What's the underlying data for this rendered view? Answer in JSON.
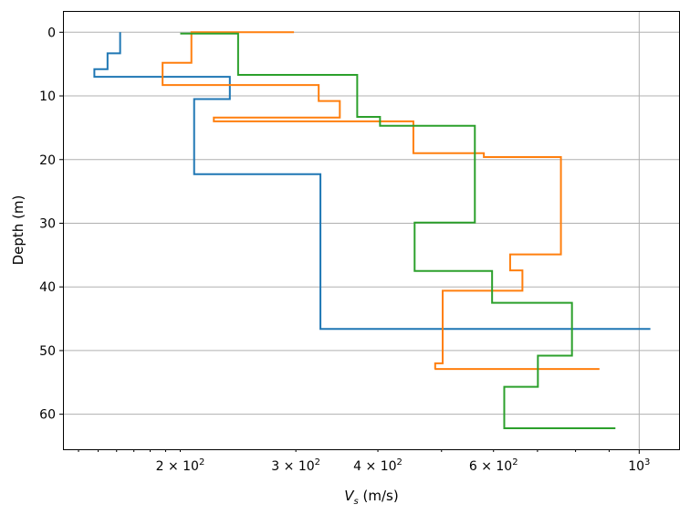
{
  "chart_data": {
    "type": "line",
    "xscale": "log",
    "xlabel_main": "V",
    "xlabel_sub": "s",
    "xlabel_unit": "(m/s)",
    "ylabel": "Depth (m)",
    "xlim": [
      133,
      1150
    ],
    "ylim": [
      65.5,
      -3.2
    ],
    "y_inverted": true,
    "grid": true,
    "x_ticks": [
      {
        "value": 200,
        "base": "2",
        "rest": " × 10",
        "exp": "2"
      },
      {
        "value": 300,
        "base": "3",
        "rest": " × 10",
        "exp": "2"
      },
      {
        "value": 400,
        "base": "4",
        "rest": " × 10",
        "exp": "2"
      },
      {
        "value": 600,
        "base": "6",
        "rest": " × 10",
        "exp": "2"
      },
      {
        "value": 1000,
        "base": "",
        "rest": "10",
        "exp": "3"
      }
    ],
    "y_ticks": [
      "0",
      "10",
      "20",
      "30",
      "40",
      "50",
      "60"
    ],
    "series": [
      {
        "color": "#1f77b4",
        "vs": [
          162,
          162,
          155,
          155,
          148,
          148,
          186,
          186,
          238,
          238,
          210,
          210,
          327,
          327,
          1040
        ],
        "depth": [
          0.0,
          3.3,
          3.3,
          5.8,
          5.8,
          7.0,
          7.0,
          7.0,
          7.0,
          10.5,
          10.5,
          22.3,
          22.3,
          46.6,
          46.6
        ]
      },
      {
        "color": "#ff7f0e",
        "vs": [
          298,
          208,
          208,
          188,
          188,
          188,
          325,
          325,
          350,
          350,
          256,
          256,
          225,
          225,
          453,
          453,
          580,
          580,
          760,
          760,
          636,
          636,
          664,
          664,
          516,
          516,
          502,
          502,
          489,
          489,
          488,
          870
        ],
        "depth": [
          0.0,
          0.0,
          4.8,
          4.8,
          8.3,
          8.3,
          8.3,
          10.8,
          10.8,
          13.4,
          13.4,
          13.4,
          13.4,
          14.0,
          14.0,
          19.0,
          19.0,
          19.6,
          19.6,
          34.9,
          34.9,
          37.4,
          37.4,
          40.6,
          40.6,
          40.6,
          40.6,
          52.0,
          52.0,
          52.9,
          52.9,
          52.9
        ]
      },
      {
        "color": "#2ca02c",
        "vs": [
          200,
          245,
          245,
          372,
          372,
          403,
          403,
          562,
          562,
          455,
          455,
          597,
          597,
          790,
          790,
          701,
          701,
          623,
          623,
          920
        ],
        "depth": [
          0.2,
          0.2,
          6.7,
          6.7,
          13.3,
          13.3,
          14.7,
          14.7,
          29.9,
          29.9,
          37.5,
          37.5,
          42.5,
          42.5,
          50.8,
          50.8,
          55.7,
          55.7,
          62.2,
          62.2
        ]
      }
    ]
  }
}
